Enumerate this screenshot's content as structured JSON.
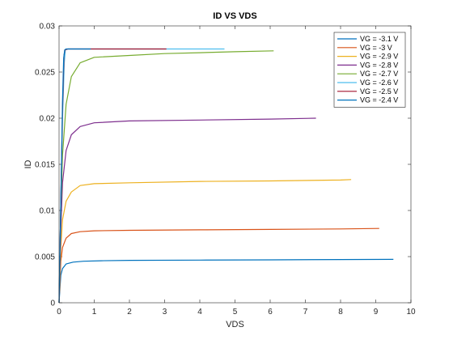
{
  "chart_data": {
    "type": "line",
    "title": "ID VS VDS",
    "xlabel": "VDS",
    "ylabel": "ID",
    "xlim": [
      0,
      10
    ],
    "ylim": [
      0,
      0.03
    ],
    "xticks": [
      "0",
      "1",
      "2",
      "3",
      "4",
      "5",
      "6",
      "7",
      "8",
      "9",
      "10"
    ],
    "yticks": [
      "0",
      "0.005",
      "0.01",
      "0.015",
      "0.02",
      "0.025",
      "0.03"
    ],
    "grid": false,
    "legend_position": "top-right",
    "series": [
      {
        "name": "VG = -3.1 V",
        "color": "#0072BD",
        "points": [
          [
            0,
            0
          ],
          [
            0.05,
            0.003
          ],
          [
            0.1,
            0.0037
          ],
          [
            0.2,
            0.0042
          ],
          [
            0.4,
            0.0044
          ],
          [
            0.7,
            0.0045
          ],
          [
            1.2,
            0.00455
          ],
          [
            2,
            0.0046
          ],
          [
            4,
            0.00462
          ],
          [
            6,
            0.00465
          ],
          [
            8,
            0.00468
          ],
          [
            9.5,
            0.0047
          ]
        ]
      },
      {
        "name": "VG = -3 V",
        "color": "#D95319",
        "points": [
          [
            0,
            0
          ],
          [
            0.05,
            0.0045
          ],
          [
            0.1,
            0.006
          ],
          [
            0.2,
            0.007
          ],
          [
            0.35,
            0.0075
          ],
          [
            0.6,
            0.0077
          ],
          [
            1,
            0.0078
          ],
          [
            2,
            0.00785
          ],
          [
            4,
            0.0079
          ],
          [
            6,
            0.00795
          ],
          [
            8,
            0.008
          ],
          [
            9.1,
            0.00805
          ]
        ]
      },
      {
        "name": "VG = -2.9 V",
        "color": "#EDB120",
        "points": [
          [
            0,
            0
          ],
          [
            0.05,
            0.006
          ],
          [
            0.1,
            0.009
          ],
          [
            0.2,
            0.011
          ],
          [
            0.35,
            0.012
          ],
          [
            0.6,
            0.0127
          ],
          [
            1,
            0.0129
          ],
          [
            2,
            0.013
          ],
          [
            4,
            0.01315
          ],
          [
            6,
            0.0132
          ],
          [
            8,
            0.0133
          ],
          [
            8.3,
            0.01335
          ]
        ]
      },
      {
        "name": "VG = -2.8 V",
        "color": "#7E2F8E",
        "points": [
          [
            0,
            0
          ],
          [
            0.05,
            0.008
          ],
          [
            0.1,
            0.013
          ],
          [
            0.2,
            0.0165
          ],
          [
            0.35,
            0.0182
          ],
          [
            0.6,
            0.0191
          ],
          [
            1,
            0.0195
          ],
          [
            2,
            0.0197
          ],
          [
            4,
            0.0198
          ],
          [
            6,
            0.0199
          ],
          [
            7.3,
            0.02
          ]
        ]
      },
      {
        "name": "VG = -2.7 V",
        "color": "#77AC30",
        "points": [
          [
            0,
            0
          ],
          [
            0.05,
            0.01
          ],
          [
            0.1,
            0.016
          ],
          [
            0.2,
            0.0215
          ],
          [
            0.35,
            0.0245
          ],
          [
            0.6,
            0.026
          ],
          [
            1,
            0.0266
          ],
          [
            2,
            0.0268
          ],
          [
            3,
            0.027
          ],
          [
            4,
            0.0271
          ],
          [
            5,
            0.0272
          ],
          [
            6.1,
            0.0273
          ]
        ]
      },
      {
        "name": "VG = -2.6 V",
        "color": "#4DBEEE",
        "points": [
          [
            0,
            0
          ],
          [
            0.05,
            0.011
          ],
          [
            0.1,
            0.02
          ],
          [
            0.15,
            0.026
          ],
          [
            0.18,
            0.0274
          ],
          [
            0.25,
            0.0275
          ],
          [
            1,
            0.0275
          ],
          [
            3,
            0.0275
          ],
          [
            4.7,
            0.0275
          ]
        ]
      },
      {
        "name": "VG = -2.5 V",
        "color": "#A2142F",
        "points": [
          [
            0,
            0
          ],
          [
            0.05,
            0.011
          ],
          [
            0.1,
            0.021
          ],
          [
            0.14,
            0.0268
          ],
          [
            0.17,
            0.0274
          ],
          [
            0.25,
            0.0275
          ],
          [
            1,
            0.0275
          ],
          [
            2,
            0.0275
          ],
          [
            3.05,
            0.0275
          ]
        ]
      },
      {
        "name": "VG = -2.4 V",
        "color": "#0072BD",
        "points": [
          [
            0,
            0
          ],
          [
            0.05,
            0.011
          ],
          [
            0.1,
            0.022
          ],
          [
            0.13,
            0.0265
          ],
          [
            0.16,
            0.0274
          ],
          [
            0.2,
            0.0275
          ],
          [
            0.5,
            0.0275
          ],
          [
            0.9,
            0.0275
          ]
        ]
      }
    ]
  }
}
